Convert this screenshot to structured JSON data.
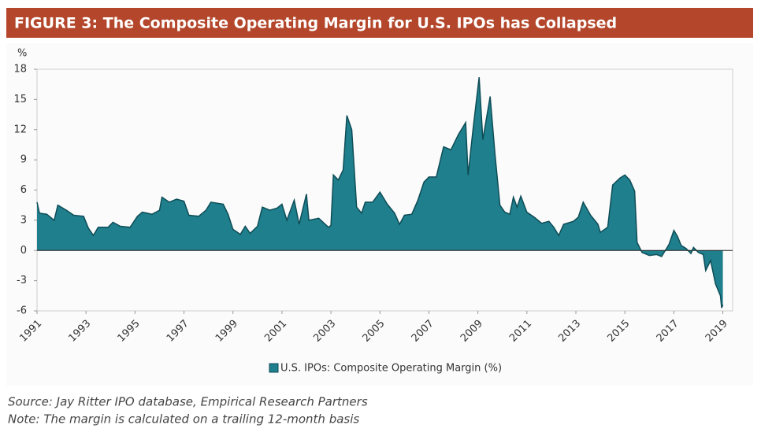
{
  "chart_data": {
    "type": "area",
    "title": "FIGURE 3: The Composite Operating Margin for U.S. IPOs has Collapsed",
    "y_unit": "%",
    "x": [
      1991.0,
      1991.1,
      1991.4,
      1991.7,
      1991.85,
      1992.2,
      1992.5,
      1992.9,
      1993.1,
      1993.3,
      1993.5,
      1993.9,
      1994.1,
      1994.4,
      1994.8,
      1995.1,
      1995.3,
      1995.7,
      1996.0,
      1996.1,
      1996.4,
      1996.7,
      1997.0,
      1997.2,
      1997.6,
      1997.9,
      1998.1,
      1998.6,
      1998.8,
      1999.0,
      1999.3,
      1999.5,
      1999.7,
      2000.0,
      2000.2,
      2000.5,
      2000.8,
      2001.0,
      2001.2,
      2001.5,
      2001.7,
      2002.0,
      2002.1,
      2002.5,
      2002.9,
      2003.0,
      2003.1,
      2003.3,
      2003.5,
      2003.65,
      2003.85,
      2004.05,
      2004.25,
      2004.4,
      2004.7,
      2005.0,
      2005.3,
      2005.6,
      2005.8,
      2006.0,
      2006.3,
      2006.55,
      2006.8,
      2007.0,
      2007.3,
      2007.6,
      2007.9,
      2008.2,
      2008.5,
      2008.6,
      2008.8,
      2009.05,
      2009.2,
      2009.5,
      2009.7,
      2009.9,
      2010.1,
      2010.3,
      2010.45,
      2010.6,
      2010.75,
      2011.0,
      2011.3,
      2011.6,
      2011.9,
      2012.1,
      2012.3,
      2012.5,
      2012.9,
      2013.1,
      2013.3,
      2013.6,
      2013.9,
      2014.0,
      2014.3,
      2014.5,
      2014.8,
      2015.0,
      2015.2,
      2015.4,
      2015.5,
      2015.7,
      2016.0,
      2016.3,
      2016.5,
      2016.8,
      2017.0,
      2017.15,
      2017.3,
      2017.5,
      2017.7,
      2017.8,
      2018.0,
      2018.2,
      2018.3,
      2018.5,
      2018.7,
      2018.9,
      2018.95,
      2019.0
    ],
    "series": [
      {
        "name": "U.S. IPOs: Composite Operating Margin (%)",
        "color": "#1f7f8c",
        "line_color": "#0e4d57",
        "values": [
          4.8,
          3.7,
          3.6,
          3.0,
          4.5,
          4.0,
          3.5,
          3.4,
          2.2,
          1.5,
          2.3,
          2.3,
          2.8,
          2.4,
          2.3,
          3.4,
          3.8,
          3.6,
          4.0,
          5.3,
          4.8,
          5.1,
          4.9,
          3.5,
          3.4,
          4.0,
          4.8,
          4.6,
          3.6,
          2.1,
          1.6,
          2.4,
          1.7,
          2.4,
          4.3,
          4.0,
          4.2,
          4.6,
          3.0,
          5.0,
          2.6,
          5.6,
          3.0,
          3.2,
          2.3,
          2.5,
          7.5,
          7.0,
          8.0,
          13.4,
          12.0,
          4.3,
          3.7,
          4.8,
          4.8,
          5.8,
          4.6,
          3.7,
          2.6,
          3.5,
          3.6,
          5.0,
          6.8,
          7.3,
          7.3,
          10.3,
          10.0,
          11.5,
          12.7,
          7.5,
          12.0,
          17.2,
          11.0,
          15.3,
          9.5,
          4.5,
          3.8,
          3.6,
          5.3,
          4.3,
          5.4,
          3.8,
          3.3,
          2.7,
          2.9,
          2.3,
          1.5,
          2.6,
          2.9,
          3.3,
          4.8,
          3.5,
          2.6,
          1.8,
          2.3,
          6.5,
          7.2,
          7.5,
          7.0,
          5.9,
          0.8,
          -0.2,
          -0.5,
          -0.4,
          -0.6,
          0.6,
          2.0,
          1.4,
          0.5,
          0.2,
          -0.3,
          0.3,
          -0.2,
          -0.4,
          -2.0,
          -1.0,
          -3.3,
          -4.5,
          -5.7,
          -5.4
        ]
      }
    ],
    "xlim": [
      1991,
      2019.4
    ],
    "xticks": [
      1991,
      1993,
      1995,
      1997,
      1999,
      2001,
      2003,
      2005,
      2007,
      2009,
      2011,
      2013,
      2015,
      2017,
      2019
    ],
    "ylim": [
      -6,
      18
    ],
    "yticks": [
      -6,
      -3,
      0,
      3,
      6,
      9,
      12,
      15,
      18
    ],
    "grid": false,
    "legend": "bottom",
    "source": "Source: Jay Ritter IPO database, Empirical Research Partners",
    "note": "Note: The margin is calculated on a trailing 12-month basis"
  }
}
